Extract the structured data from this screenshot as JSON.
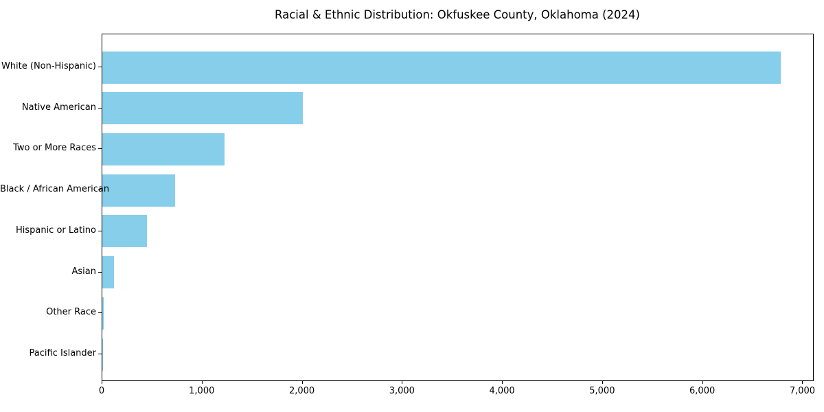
{
  "chart_data": {
    "type": "bar",
    "orientation": "horizontal",
    "title": "Racial & Ethnic Distribution: Okfuskee County, Oklahoma (2024)",
    "categories": [
      "White (Non-Hispanic)",
      "Native American",
      "Two or More Races",
      "Black / African American",
      "Hispanic or Latino",
      "Asian",
      "Other Race",
      "Pacific Islander"
    ],
    "values": [
      6780,
      2000,
      1220,
      730,
      445,
      120,
      12,
      4
    ],
    "bar_color": "#87CEEB",
    "background_color": "#ffffff",
    "spine_color": "#000000",
    "xlabel": "",
    "ylabel": "",
    "xlim": [
      0,
      7100
    ],
    "x_ticks": [
      0,
      1000,
      2000,
      3000,
      4000,
      5000,
      6000,
      7000
    ],
    "x_tick_labels": [
      "0",
      "1,000",
      "2,000",
      "3,000",
      "4,000",
      "5,000",
      "6,000",
      "7,000"
    ],
    "grid": false,
    "legend": "none"
  }
}
